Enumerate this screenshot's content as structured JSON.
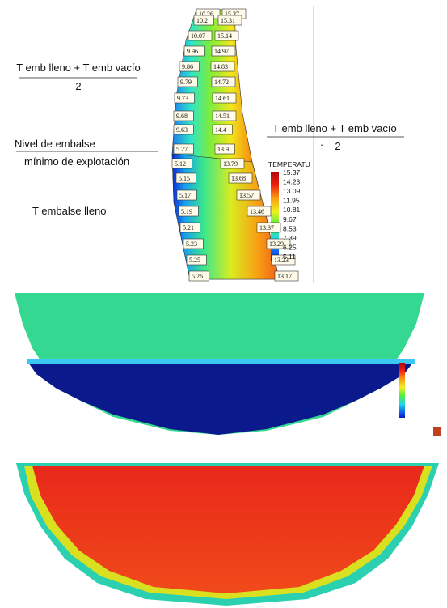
{
  "section": {
    "left_formula": {
      "numerator": "T emb lleno + T emb vacío",
      "denominator": "2"
    },
    "level_label": [
      "Nivel de embalse",
      "mínimo de explotación"
    ],
    "full_label": "T embalse lleno",
    "right_formula": {
      "numerator": "T emb lleno + T emb vacío",
      "dot": ".",
      "denominator": "2"
    },
    "upstream_labels": [
      "10.26",
      "10.2",
      "10.07",
      "9.96",
      "9.86",
      "9.79",
      "9.73",
      "9.68",
      "9.63",
      "5.27",
      "5.12",
      "5.15",
      "5.17",
      "5.19",
      "5.21",
      "5.23",
      "5.25",
      "5.26"
    ],
    "downstream_labels": [
      "15.37",
      "15.31",
      "15.14",
      "14.97",
      "14.83",
      "14.72",
      "14.61",
      "14.51",
      "14.4",
      "13.9",
      "13.79",
      "13.68",
      "13.57",
      "13.46",
      "13.37",
      "13.29",
      "13.23",
      "13.17"
    ],
    "legend": {
      "title": "TEMPERATU",
      "values": [
        "15.37",
        "14.23",
        "13.09",
        "11.95",
        "10.81",
        "9.67",
        "8.53",
        "7.39",
        "6.25",
        "5.11"
      ]
    }
  }
}
